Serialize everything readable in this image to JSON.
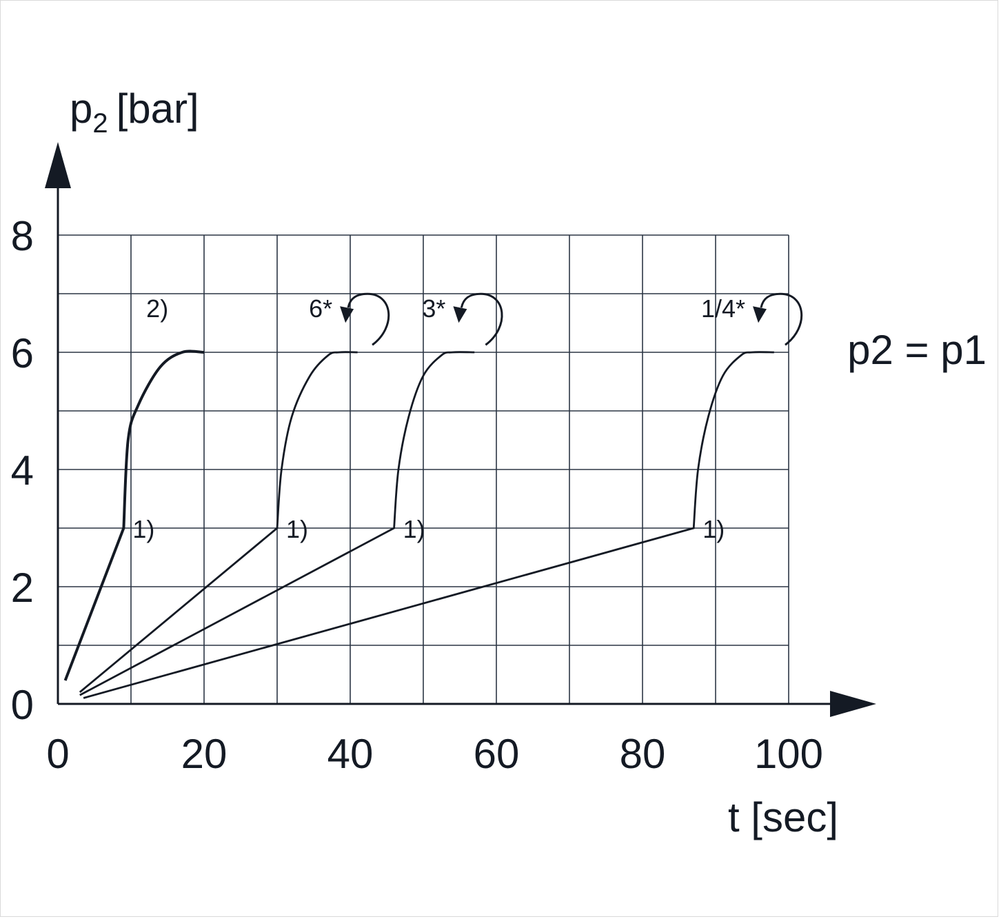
{
  "chart_data": {
    "type": "line",
    "xlabel": "t [sec]",
    "ylabel": {
      "main": "p",
      "sub": "2",
      "unit": "[bar]"
    },
    "xlim": [
      0,
      100
    ],
    "ylim": [
      0,
      8
    ],
    "x_ticks": [
      "0",
      "20",
      "40",
      "60",
      "80",
      "100"
    ],
    "y_ticks": [
      "0",
      "2",
      "4",
      "6",
      "8"
    ],
    "grid": true,
    "annotation_right": "p2 = p1",
    "series": [
      {
        "marker": "1)",
        "top_label": "2)",
        "bold": true,
        "points": [
          [
            1,
            0.4
          ],
          [
            9,
            3.0
          ],
          [
            9.6,
            4.5
          ],
          [
            11,
            5.1
          ],
          [
            14,
            5.75
          ],
          [
            17,
            6.0
          ],
          [
            20,
            6.0
          ]
        ]
      },
      {
        "marker": "1)",
        "top_label": "6*",
        "points": [
          [
            3,
            0.2
          ],
          [
            30,
            3.0
          ],
          [
            30.6,
            4.0
          ],
          [
            32,
            4.9
          ],
          [
            34.5,
            5.6
          ],
          [
            37,
            5.95
          ],
          [
            38.5,
            6.0
          ],
          [
            41,
            6.0
          ]
        ]
      },
      {
        "marker": "1)",
        "top_label": "3*",
        "points": [
          [
            3,
            0.15
          ],
          [
            46,
            3.0
          ],
          [
            46.6,
            4.0
          ],
          [
            48,
            4.9
          ],
          [
            50,
            5.6
          ],
          [
            52.5,
            5.95
          ],
          [
            54,
            6.0
          ],
          [
            57,
            6.0
          ]
        ]
      },
      {
        "marker": "1)",
        "top_label": "1/4*",
        "points": [
          [
            3.5,
            0.1
          ],
          [
            87,
            3.0
          ],
          [
            87.6,
            4.0
          ],
          [
            89,
            4.9
          ],
          [
            91,
            5.6
          ],
          [
            93.5,
            5.95
          ],
          [
            95,
            6.0
          ],
          [
            98,
            6.0
          ]
        ]
      }
    ]
  }
}
